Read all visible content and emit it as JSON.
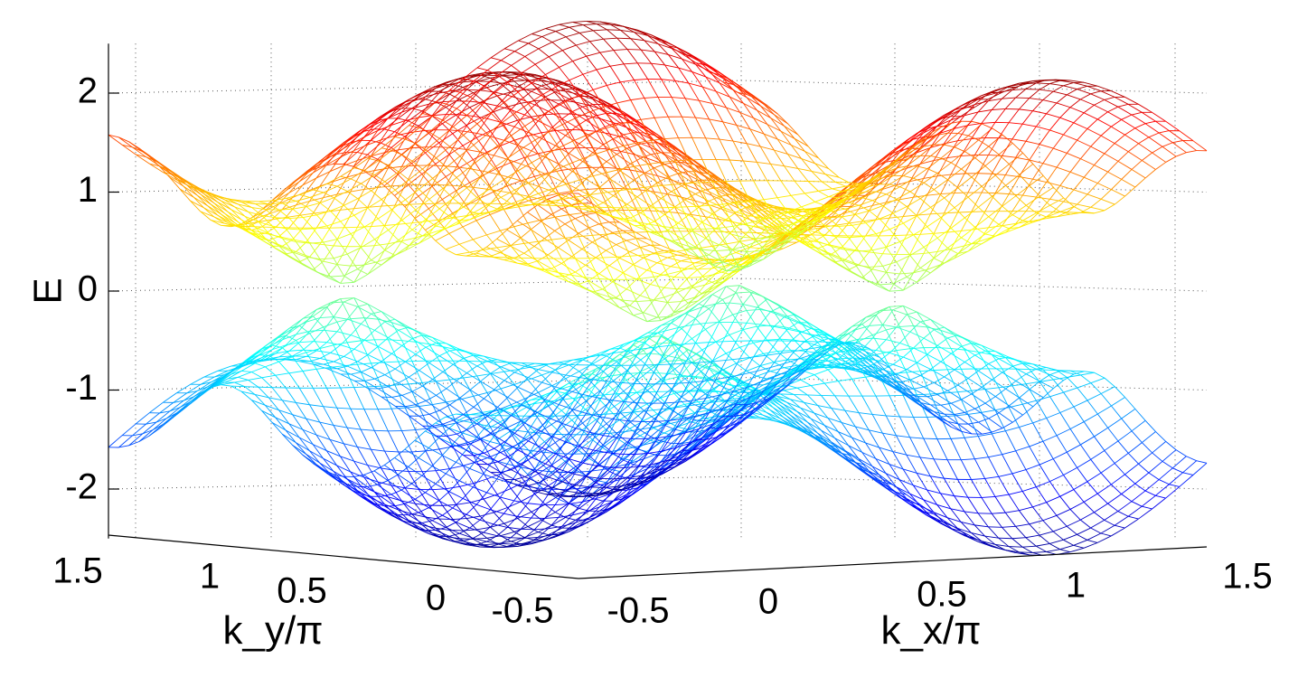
{
  "chart_data": {
    "type": "surface",
    "title": "",
    "xlabel": "k_x/π",
    "ylabel": "k_y/π",
    "zlabel": "E",
    "xlim": [
      -0.5,
      1.5
    ],
    "ylim": [
      -0.5,
      1.5
    ],
    "zlim": [
      -2.5,
      2.5
    ],
    "x_ticks": [
      -0.5,
      0,
      0.5,
      1,
      1.5
    ],
    "y_ticks": [
      1.5,
      1,
      0.5,
      0,
      -0.5
    ],
    "z_ticks": [
      2,
      1,
      0,
      -1,
      -2
    ],
    "x_tick_labels": [
      "-0.5",
      "0",
      "0.5",
      "1",
      "1.5"
    ],
    "y_tick_labels": [
      "1.5",
      "1",
      "0.5",
      "0",
      "-0.5"
    ],
    "z_tick_labels": [
      "2",
      "1",
      "0",
      "-1",
      "-2"
    ],
    "grid": true,
    "colormap": "jet",
    "surfaces": [
      {
        "band": "upper",
        "z_min": 0,
        "z_max": 2.5
      },
      {
        "band": "lower",
        "z_min": -2.5,
        "z_max": 0
      }
    ],
    "dirac_points": [
      {
        "kx": 0,
        "ky": 0.5,
        "E": 0
      },
      {
        "kx": 1,
        "ky": 0.5,
        "E": 0
      }
    ],
    "colors": {
      "low": "#00008f",
      "high": "#800000",
      "grid": "#555555"
    }
  }
}
